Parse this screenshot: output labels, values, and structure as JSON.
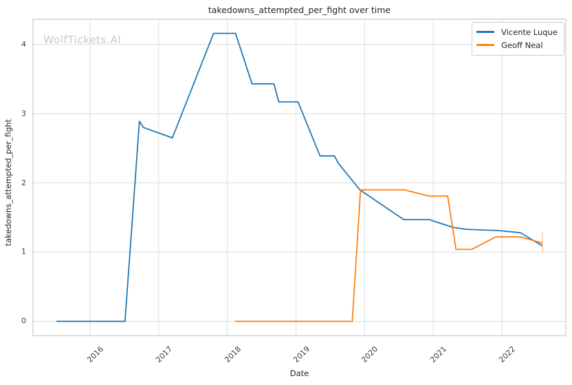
{
  "title": "takedowns_attempted_per_fight over time",
  "watermark": "WolfTickets.AI",
  "colors": {
    "series_blue": "#1f77b4",
    "series_orange": "#ff7f0e",
    "grid": "#dcdcdc",
    "spine": "#c9c9c9",
    "text": "#262626",
    "tick_text": "#3b3b3b",
    "watermark": "#c9c9c9",
    "legend_border": "#cccccc"
  },
  "chart_data": {
    "type": "line",
    "title": "takedowns_attempted_per_fight over time",
    "xlabel": "Date",
    "ylabel": "takedowns_attempted_per_fight",
    "xlim": [
      2015.17,
      2022.93
    ],
    "ylim": [
      -0.205,
      4.364
    ],
    "x_ticks": [
      2016,
      2017,
      2018,
      2019,
      2020,
      2021,
      2022
    ],
    "y_ticks": [
      0,
      1,
      2,
      3,
      4
    ],
    "grid": true,
    "legend_position": "upper right",
    "series": [
      {
        "name": "Vicente Luque",
        "color": "#1f77b4",
        "points": [
          [
            2015.51,
            0.0
          ],
          [
            2016.51,
            0.0
          ],
          [
            2016.72,
            2.89
          ],
          [
            2016.78,
            2.8
          ],
          [
            2017.2,
            2.65
          ],
          [
            2017.8,
            4.16
          ],
          [
            2018.12,
            4.16
          ],
          [
            2018.36,
            3.43
          ],
          [
            2018.68,
            3.43
          ],
          [
            2018.75,
            3.17
          ],
          [
            2019.03,
            3.17
          ],
          [
            2019.35,
            2.39
          ],
          [
            2019.56,
            2.39
          ],
          [
            2019.62,
            2.28
          ],
          [
            2019.93,
            1.9
          ],
          [
            2020.57,
            1.47
          ],
          [
            2020.94,
            1.47
          ],
          [
            2021.28,
            1.36
          ],
          [
            2021.48,
            1.33
          ],
          [
            2021.97,
            1.31
          ],
          [
            2022.27,
            1.28
          ],
          [
            2022.59,
            1.09
          ]
        ]
      },
      {
        "name": "Geoff Neal",
        "color": "#ff7f0e",
        "points": [
          [
            2018.11,
            0.0
          ],
          [
            2019.82,
            0.0
          ],
          [
            2019.94,
            1.9
          ],
          [
            2020.58,
            1.9
          ],
          [
            2020.94,
            1.81
          ],
          [
            2021.21,
            1.81
          ],
          [
            2021.33,
            1.04
          ],
          [
            2021.56,
            1.04
          ],
          [
            2021.91,
            1.22
          ],
          [
            2022.27,
            1.22
          ],
          [
            2022.59,
            1.13
          ]
        ],
        "end_marker": {
          "x": 2022.59,
          "y_from": 1.0,
          "y_to": 1.28,
          "opacity": 0.4
        }
      }
    ]
  }
}
